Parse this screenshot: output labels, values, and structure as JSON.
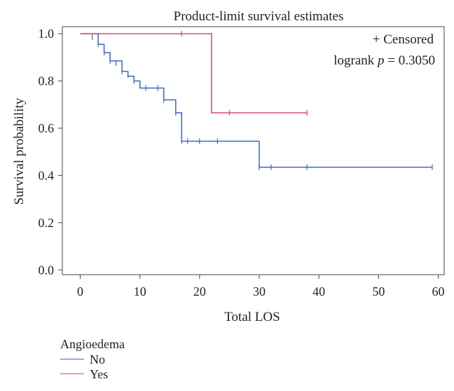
{
  "chart_data": {
    "type": "line",
    "title": "Product-limit survival estimates",
    "xlabel": "Total LOS",
    "ylabel": "Survival probability",
    "xlim": [
      -3,
      61
    ],
    "ylim": [
      -0.02,
      1.03
    ],
    "x_ticks": [
      0,
      10,
      20,
      30,
      40,
      50,
      60
    ],
    "y_ticks": [
      0.0,
      0.2,
      0.4,
      0.6,
      0.8,
      1.0
    ],
    "x_tick_labels": [
      "0",
      "10",
      "20",
      "30",
      "40",
      "50",
      "60"
    ],
    "y_tick_labels": [
      "0.0",
      "0.2",
      "0.4",
      "0.6",
      "0.8",
      "1.0"
    ],
    "grid": false,
    "annotations": {
      "censored": "+ Censored",
      "logrank_prefix": "logrank ",
      "logrank_p": "p",
      "logrank_suffix": " = 0.3050"
    },
    "legend": {
      "title": "Angioedema",
      "placement": "bottom-left"
    },
    "series": [
      {
        "name": "No",
        "color": "#3f64c9",
        "steps": [
          [
            0,
            1.0
          ],
          [
            3,
            0.955
          ],
          [
            4,
            0.92
          ],
          [
            5,
            0.885
          ],
          [
            7,
            0.84
          ],
          [
            8,
            0.82
          ],
          [
            9,
            0.8
          ],
          [
            10,
            0.77
          ],
          [
            14,
            0.72
          ],
          [
            16,
            0.665
          ],
          [
            17,
            0.545
          ],
          [
            30,
            0.435
          ]
        ],
        "end": 59,
        "censored": [
          [
            2,
            0.985
          ],
          [
            3,
            0.955
          ],
          [
            4,
            0.92
          ],
          [
            5,
            0.885
          ],
          [
            6,
            0.875
          ],
          [
            7,
            0.84
          ],
          [
            8,
            0.825
          ],
          [
            9,
            0.8
          ],
          [
            11,
            0.77
          ],
          [
            13,
            0.77
          ],
          [
            14,
            0.72
          ],
          [
            16,
            0.665
          ],
          [
            17,
            0.545
          ],
          [
            18,
            0.545
          ],
          [
            20,
            0.545
          ],
          [
            23,
            0.545
          ],
          [
            30,
            0.435
          ],
          [
            32,
            0.435
          ],
          [
            38,
            0.435
          ],
          [
            59,
            0.435
          ]
        ]
      },
      {
        "name": "Yes",
        "color": "#d2506a",
        "steps": [
          [
            0,
            1.0
          ],
          [
            22,
            0.665
          ]
        ],
        "end": 38,
        "censored": [
          [
            17,
            1.0
          ],
          [
            25,
            0.665
          ],
          [
            38,
            0.665
          ]
        ]
      }
    ]
  }
}
